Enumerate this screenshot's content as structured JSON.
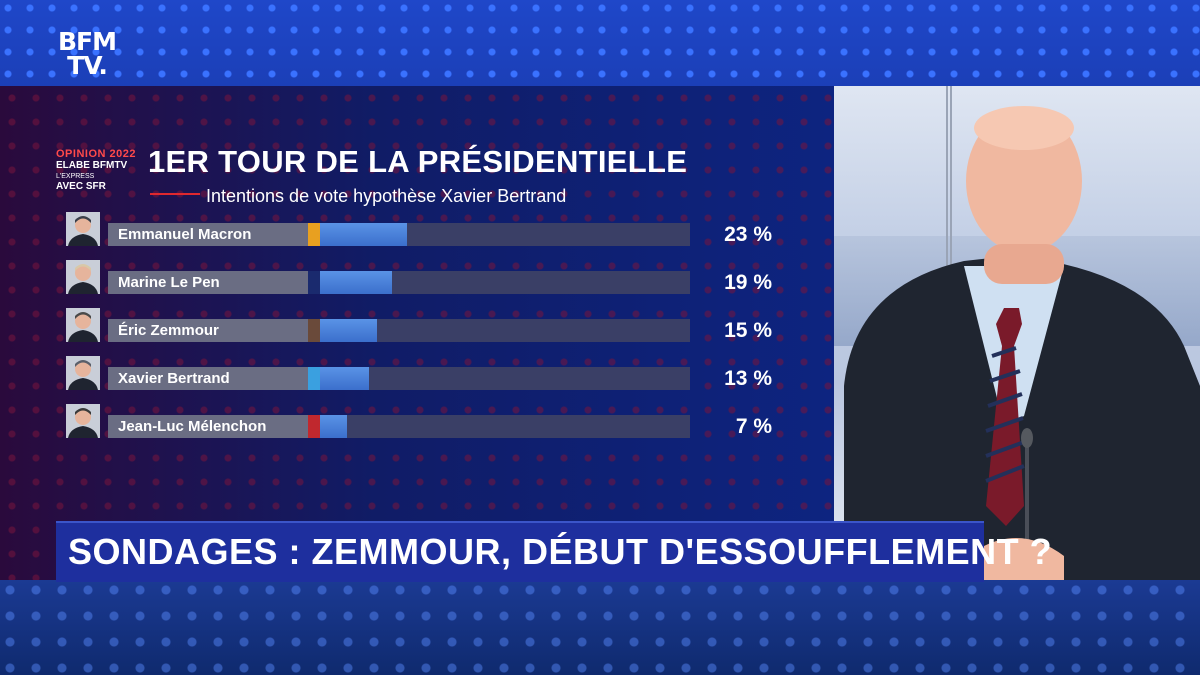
{
  "channel": {
    "logo_line1": "BFM",
    "logo_line2": "TV."
  },
  "badge": {
    "line1": "OPINION 2022",
    "line2": "ELABE BFMTV",
    "line3": "L'EXPRESS",
    "line4": "AVEC SFR"
  },
  "colors": {
    "bar_fill": "#4a85de",
    "track": "#3a3f66",
    "label_bg": "#6a6d83",
    "banner": "#1e2f9e"
  },
  "chart_data": {
    "type": "bar",
    "orientation": "horizontal",
    "title": "1ER TOUR DE LA PRÉSIDENTIELLE",
    "subtitle": "Intentions de vote hypothèse Xavier Bertrand",
    "categories": [
      "Emmanuel Macron",
      "Marine Le Pen",
      "Éric Zemmour",
      "Xavier Bertrand",
      "Jean-Luc Mélenchon"
    ],
    "values": [
      23,
      19,
      15,
      13,
      7
    ],
    "value_labels": [
      "23 %",
      "19 %",
      "15 %",
      "13 %",
      "7 %"
    ],
    "accent_colors": [
      "#e8a020",
      "#1a2a6e",
      "#6a4a3a",
      "#3aa0e0",
      "#c0282e"
    ],
    "xlim": [
      0,
      100
    ],
    "grid": false,
    "legend": "none"
  },
  "headline": "SONDAGES : ZEMMOUR, DÉBUT D'ESSOUFFLEMENT ?"
}
